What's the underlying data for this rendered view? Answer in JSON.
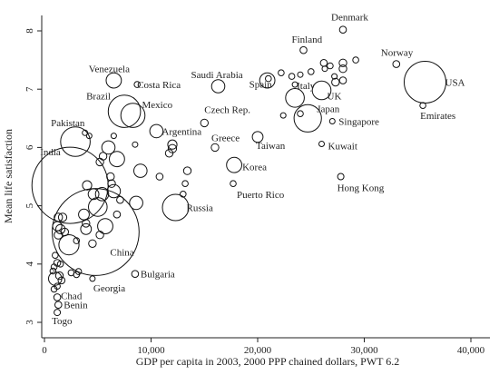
{
  "chart_data": {
    "type": "scatter",
    "title": "",
    "xlabel": "GDP per capita in 2003, 2000 PPP chained dollars, PWT 6.2",
    "ylabel": "Mean life satisfaction",
    "xlim": [
      0,
      40000
    ],
    "ylim": [
      3,
      8.2
    ],
    "x_ticks": [
      0,
      10000,
      20000,
      30000,
      40000
    ],
    "x_tick_labels": [
      "0",
      "10,000",
      "20,000",
      "30,000",
      "40,000"
    ],
    "y_ticks": [
      3,
      4,
      5,
      6,
      7,
      8
    ],
    "y_tick_labels": [
      "3",
      "4",
      "5",
      "6",
      "7",
      "8"
    ],
    "grid": false,
    "size_encoding": "population",
    "labeled_points": [
      {
        "name": "Denmark",
        "x": 28000,
        "y": 8.02,
        "size": 0.8
      },
      {
        "name": "Finland",
        "x": 24300,
        "y": 7.67,
        "size": 0.8
      },
      {
        "name": "Norway",
        "x": 33000,
        "y": 7.43,
        "size": 0.8
      },
      {
        "name": "USA",
        "x": 35700,
        "y": 7.12,
        "size": 30
      },
      {
        "name": "Emirates",
        "x": 35500,
        "y": 6.72,
        "size": 0.6
      },
      {
        "name": "Venezuela",
        "x": 6500,
        "y": 7.15,
        "size": 4
      },
      {
        "name": "Costa Rica",
        "x": 8700,
        "y": 7.08,
        "size": 0.6
      },
      {
        "name": "Saudi Arabia",
        "x": 16300,
        "y": 7.05,
        "size": 3
      },
      {
        "name": "Spain",
        "x": 20900,
        "y": 7.15,
        "size": 4
      },
      {
        "name": "Italy",
        "x": 23500,
        "y": 6.85,
        "size": 6
      },
      {
        "name": "UK",
        "x": 26000,
        "y": 6.98,
        "size": 6
      },
      {
        "name": "Brazil",
        "x": 7500,
        "y": 6.62,
        "size": 18
      },
      {
        "name": "Mexico",
        "x": 8300,
        "y": 6.55,
        "size": 10
      },
      {
        "name": "Japan",
        "x": 24700,
        "y": 6.5,
        "size": 13
      },
      {
        "name": "Singapore",
        "x": 27000,
        "y": 6.45,
        "size": 0.5
      },
      {
        "name": "Czech Rep.",
        "x": 15000,
        "y": 6.42,
        "size": 1
      },
      {
        "name": "Argentina",
        "x": 10500,
        "y": 6.28,
        "size": 3
      },
      {
        "name": "Pakistan",
        "x": 2900,
        "y": 6.1,
        "size": 15
      },
      {
        "name": "Greece",
        "x": 16000,
        "y": 6.0,
        "size": 1
      },
      {
        "name": "Taiwan",
        "x": 20000,
        "y": 6.18,
        "size": 2
      },
      {
        "name": "Kuwait",
        "x": 26000,
        "y": 6.06,
        "size": 0.5
      },
      {
        "name": "India",
        "x": 2400,
        "y": 5.35,
        "size": 100
      },
      {
        "name": "Korea",
        "x": 17800,
        "y": 5.7,
        "size": 4
      },
      {
        "name": "Puerto Rico",
        "x": 17700,
        "y": 5.38,
        "size": 0.6
      },
      {
        "name": "Hong Kong",
        "x": 27800,
        "y": 5.5,
        "size": 0.7
      },
      {
        "name": "Russia",
        "x": 12300,
        "y": 4.97,
        "size": 12
      },
      {
        "name": "China",
        "x": 4800,
        "y": 4.55,
        "size": 130
      },
      {
        "name": "Bulgaria",
        "x": 8500,
        "y": 3.83,
        "size": 0.8
      },
      {
        "name": "Georgia",
        "x": 4500,
        "y": 3.75,
        "size": 0.5
      },
      {
        "name": "Chad",
        "x": 1200,
        "y": 3.43,
        "size": 0.8
      },
      {
        "name": "Benin",
        "x": 1300,
        "y": 3.3,
        "size": 0.8
      },
      {
        "name": "Togo",
        "x": 1200,
        "y": 3.17,
        "size": 0.7
      }
    ],
    "unlabeled_points": [
      {
        "x": 29200,
        "y": 7.5,
        "size": 0.6
      },
      {
        "x": 28000,
        "y": 7.45,
        "size": 1
      },
      {
        "x": 28000,
        "y": 7.35,
        "size": 1
      },
      {
        "x": 26800,
        "y": 7.4,
        "size": 0.6
      },
      {
        "x": 26200,
        "y": 7.45,
        "size": 0.8
      },
      {
        "x": 26300,
        "y": 7.35,
        "size": 0.5
      },
      {
        "x": 25000,
        "y": 7.3,
        "size": 0.6
      },
      {
        "x": 27200,
        "y": 7.22,
        "size": 0.5
      },
      {
        "x": 28000,
        "y": 7.15,
        "size": 0.8
      },
      {
        "x": 27300,
        "y": 7.12,
        "size": 1
      },
      {
        "x": 21000,
        "y": 7.18,
        "size": 0.6
      },
      {
        "x": 22200,
        "y": 7.28,
        "size": 0.6
      },
      {
        "x": 24000,
        "y": 7.25,
        "size": 0.5
      },
      {
        "x": 24000,
        "y": 6.58,
        "size": 0.6
      },
      {
        "x": 22400,
        "y": 6.55,
        "size": 0.5
      },
      {
        "x": 23200,
        "y": 7.22,
        "size": 0.6
      },
      {
        "x": 23500,
        "y": 7.08,
        "size": 0.5
      },
      {
        "x": 6000,
        "y": 6.0,
        "size": 3
      },
      {
        "x": 5500,
        "y": 5.85,
        "size": 1
      },
      {
        "x": 5200,
        "y": 5.75,
        "size": 1
      },
      {
        "x": 6800,
        "y": 5.8,
        "size": 4
      },
      {
        "x": 6500,
        "y": 6.2,
        "size": 0.5
      },
      {
        "x": 4200,
        "y": 6.2,
        "size": 0.5
      },
      {
        "x": 3800,
        "y": 6.25,
        "size": 0.5
      },
      {
        "x": 9000,
        "y": 5.6,
        "size": 3
      },
      {
        "x": 10800,
        "y": 5.5,
        "size": 0.8
      },
      {
        "x": 11700,
        "y": 5.9,
        "size": 1
      },
      {
        "x": 12000,
        "y": 6.05,
        "size": 1.5
      },
      {
        "x": 12000,
        "y": 5.98,
        "size": 1.2
      },
      {
        "x": 13400,
        "y": 5.6,
        "size": 1
      },
      {
        "x": 13000,
        "y": 5.2,
        "size": 0.6
      },
      {
        "x": 13200,
        "y": 5.38,
        "size": 0.6
      },
      {
        "x": 8600,
        "y": 5.05,
        "size": 3
      },
      {
        "x": 8500,
        "y": 6.05,
        "size": 0.5
      },
      {
        "x": 7100,
        "y": 5.1,
        "size": 0.8
      },
      {
        "x": 6800,
        "y": 4.85,
        "size": 0.8
      },
      {
        "x": 6500,
        "y": 5.25,
        "size": 3
      },
      {
        "x": 6200,
        "y": 5.5,
        "size": 1
      },
      {
        "x": 6300,
        "y": 5.38,
        "size": 1
      },
      {
        "x": 5400,
        "y": 5.2,
        "size": 3
      },
      {
        "x": 5000,
        "y": 4.98,
        "size": 6
      },
      {
        "x": 4600,
        "y": 5.2,
        "size": 2
      },
      {
        "x": 4000,
        "y": 5.35,
        "size": 1.5
      },
      {
        "x": 3900,
        "y": 4.6,
        "size": 2
      },
      {
        "x": 3700,
        "y": 4.85,
        "size": 2
      },
      {
        "x": 3900,
        "y": 4.7,
        "size": 1
      },
      {
        "x": 5700,
        "y": 4.65,
        "size": 4
      },
      {
        "x": 5200,
        "y": 4.5,
        "size": 1
      },
      {
        "x": 4500,
        "y": 4.35,
        "size": 1
      },
      {
        "x": 2300,
        "y": 4.33,
        "size": 7
      },
      {
        "x": 3000,
        "y": 4.4,
        "size": 0.6
      },
      {
        "x": 1500,
        "y": 4.6,
        "size": 1.5
      },
      {
        "x": 1300,
        "y": 4.5,
        "size": 1.2
      },
      {
        "x": 1900,
        "y": 4.55,
        "size": 1
      },
      {
        "x": 1700,
        "y": 4.8,
        "size": 1.2
      },
      {
        "x": 1300,
        "y": 4.8,
        "size": 1.2
      },
      {
        "x": 1200,
        "y": 4.65,
        "size": 1.5
      },
      {
        "x": 1000,
        "y": 4.15,
        "size": 0.6
      },
      {
        "x": 1200,
        "y": 4.02,
        "size": 0.8
      },
      {
        "x": 900,
        "y": 3.95,
        "size": 0.6
      },
      {
        "x": 1500,
        "y": 4.0,
        "size": 0.6
      },
      {
        "x": 800,
        "y": 3.88,
        "size": 0.6
      },
      {
        "x": 1000,
        "y": 3.75,
        "size": 3
      },
      {
        "x": 1400,
        "y": 3.8,
        "size": 1
      },
      {
        "x": 1600,
        "y": 3.72,
        "size": 0.8
      },
      {
        "x": 1200,
        "y": 3.62,
        "size": 0.6
      },
      {
        "x": 900,
        "y": 3.57,
        "size": 0.6
      },
      {
        "x": 2500,
        "y": 3.85,
        "size": 0.6
      },
      {
        "x": 3200,
        "y": 3.87,
        "size": 0.6
      },
      {
        "x": 3000,
        "y": 3.82,
        "size": 0.6
      }
    ]
  }
}
